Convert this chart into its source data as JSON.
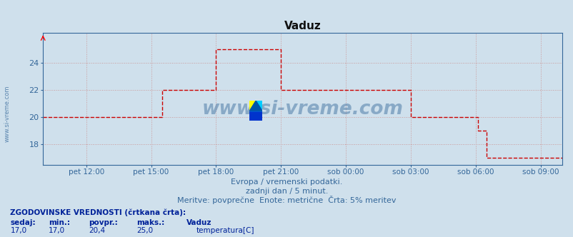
{
  "title": "Vaduz",
  "background_color": "#cfe0ec",
  "plot_bg_color": "#cfe0ec",
  "line_color": "#cc0000",
  "line_style": "--",
  "line_width": 1.0,
  "ylim": [
    16.5,
    26.2
  ],
  "yticks": [
    18,
    20,
    22,
    24
  ],
  "grid_color": "#cc9999",
  "grid_style": ":",
  "watermark": "www.si-vreme.com",
  "caption1": "Evropa / vremenski podatki.",
  "caption2": "zadnji dan / 5 minut.",
  "caption3": "Meritve: povprečne  Enote: metrične  Črta: 5% meritev",
  "footer_left": "ZGODOVINSKE VREDNOSTI (črtkana črta):",
  "footer_legend": "temperatura[C]",
  "x_tick_labels": [
    "pet 12:00",
    "pet 15:00",
    "pet 18:00",
    "pet 21:00",
    "sob 00:00",
    "sob 03:00",
    "sob 06:00",
    "sob 09:00"
  ],
  "x_tick_positions": [
    2,
    5,
    8,
    11,
    14,
    17,
    20,
    23
  ],
  "time_points": [
    0,
    0.5,
    1,
    1.5,
    2,
    2.5,
    3,
    3.5,
    4,
    4.5,
    5,
    5.1,
    5.5,
    6,
    6.5,
    7,
    7.5,
    7.9,
    8.0,
    8.5,
    9,
    9.5,
    10,
    10.5,
    10.9,
    11.0,
    11.5,
    12,
    12.5,
    13,
    13.5,
    13.9,
    14.0,
    14.5,
    15,
    15.5,
    16,
    16.5,
    16.9,
    17.0,
    17.5,
    18,
    18.5,
    19,
    19.5,
    19.9,
    20.0,
    20.1,
    20.5,
    21,
    21.5,
    22,
    22.5,
    23,
    23.5,
    24
  ],
  "temperature_values": [
    20.0,
    20.0,
    20.0,
    20.0,
    20.0,
    20.0,
    20.0,
    20.0,
    20.0,
    20.0,
    20.0,
    20.0,
    22.0,
    22.0,
    22.0,
    22.0,
    22.0,
    22.0,
    25.0,
    25.0,
    25.0,
    25.0,
    25.0,
    25.0,
    25.0,
    22.0,
    22.0,
    22.0,
    22.0,
    22.0,
    22.0,
    22.0,
    22.0,
    22.0,
    22.0,
    22.0,
    22.0,
    22.0,
    22.0,
    20.0,
    20.0,
    20.0,
    20.0,
    20.0,
    20.0,
    20.0,
    20.0,
    19.0,
    17.0,
    17.0,
    17.0,
    17.0,
    17.0,
    17.0,
    17.0,
    17.0
  ]
}
